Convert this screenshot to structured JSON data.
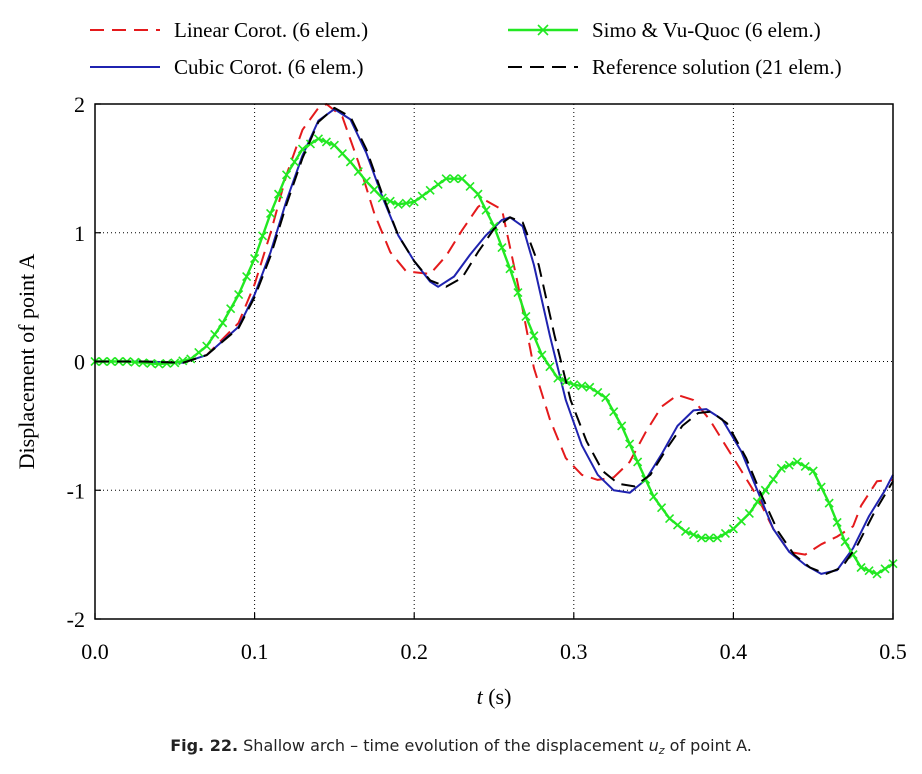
{
  "caption": {
    "label": "Fig. 22.",
    "text_before": "Shallow arch – time evolution of the displacement ",
    "var_main": "u",
    "var_sub": "z",
    "text_after": " of point A."
  },
  "chart_data": {
    "type": "line",
    "xlabel_italic": "t",
    "xlabel_unit": " (s)",
    "ylabel": "Displacement of point A",
    "xlim": [
      0.0,
      0.5
    ],
    "ylim": [
      -2,
      2
    ],
    "xticks": [
      0.0,
      0.1,
      0.2,
      0.3,
      0.4,
      0.5
    ],
    "xtick_labels": [
      "0.0",
      "0.1",
      "0.2",
      "0.3",
      "0.4",
      "0.5"
    ],
    "yticks": [
      -2,
      -1,
      0,
      1,
      2
    ],
    "ytick_labels": [
      "-2",
      "-1",
      "0",
      "1",
      "2"
    ],
    "grid": true,
    "legend_position": "top",
    "series": [
      {
        "name": "Linear Corot. (6 elem.)",
        "color": "#e41a1c",
        "style": "dashed",
        "marker": "none",
        "points": [
          [
            0,
            0
          ],
          [
            0.03,
            0
          ],
          [
            0.055,
            -0.01
          ],
          [
            0.07,
            0.05
          ],
          [
            0.09,
            0.3
          ],
          [
            0.1,
            0.6
          ],
          [
            0.11,
            1.0
          ],
          [
            0.12,
            1.45
          ],
          [
            0.13,
            1.8
          ],
          [
            0.14,
            1.97
          ],
          [
            0.145,
            2.0
          ],
          [
            0.155,
            1.9
          ],
          [
            0.165,
            1.55
          ],
          [
            0.175,
            1.15
          ],
          [
            0.185,
            0.85
          ],
          [
            0.195,
            0.7
          ],
          [
            0.21,
            0.68
          ],
          [
            0.22,
            0.82
          ],
          [
            0.23,
            1.02
          ],
          [
            0.24,
            1.2
          ],
          [
            0.245,
            1.25
          ],
          [
            0.255,
            1.18
          ],
          [
            0.265,
            0.6
          ],
          [
            0.275,
            -0.05
          ],
          [
            0.285,
            -0.45
          ],
          [
            0.295,
            -0.75
          ],
          [
            0.305,
            -0.88
          ],
          [
            0.315,
            -0.92
          ],
          [
            0.325,
            -0.9
          ],
          [
            0.335,
            -0.78
          ],
          [
            0.345,
            -0.55
          ],
          [
            0.355,
            -0.35
          ],
          [
            0.365,
            -0.26
          ],
          [
            0.375,
            -0.3
          ],
          [
            0.385,
            -0.45
          ],
          [
            0.395,
            -0.65
          ],
          [
            0.405,
            -0.85
          ],
          [
            0.415,
            -1.05
          ],
          [
            0.425,
            -1.3
          ],
          [
            0.435,
            -1.48
          ],
          [
            0.445,
            -1.5
          ],
          [
            0.455,
            -1.42
          ],
          [
            0.465,
            -1.36
          ],
          [
            0.475,
            -1.28
          ],
          [
            0.48,
            -1.12
          ],
          [
            0.49,
            -0.93
          ],
          [
            0.5,
            -0.92
          ]
        ]
      },
      {
        "name": "Cubic Corot. (6 elem.)",
        "color": "#1f23b0",
        "style": "solid",
        "marker": "none",
        "points": [
          [
            0,
            0
          ],
          [
            0.03,
            0
          ],
          [
            0.055,
            -0.01
          ],
          [
            0.07,
            0.05
          ],
          [
            0.09,
            0.27
          ],
          [
            0.1,
            0.52
          ],
          [
            0.11,
            0.85
          ],
          [
            0.12,
            1.25
          ],
          [
            0.13,
            1.6
          ],
          [
            0.14,
            1.87
          ],
          [
            0.15,
            1.96
          ],
          [
            0.16,
            1.88
          ],
          [
            0.17,
            1.62
          ],
          [
            0.18,
            1.28
          ],
          [
            0.19,
            0.98
          ],
          [
            0.2,
            0.78
          ],
          [
            0.21,
            0.62
          ],
          [
            0.215,
            0.58
          ],
          [
            0.225,
            0.66
          ],
          [
            0.235,
            0.83
          ],
          [
            0.245,
            0.98
          ],
          [
            0.255,
            1.1
          ],
          [
            0.26,
            1.12
          ],
          [
            0.268,
            1.05
          ],
          [
            0.275,
            0.75
          ],
          [
            0.285,
            0.2
          ],
          [
            0.295,
            -0.3
          ],
          [
            0.305,
            -0.65
          ],
          [
            0.315,
            -0.88
          ],
          [
            0.325,
            -1.0
          ],
          [
            0.335,
            -1.02
          ],
          [
            0.345,
            -0.92
          ],
          [
            0.355,
            -0.72
          ],
          [
            0.365,
            -0.5
          ],
          [
            0.375,
            -0.38
          ],
          [
            0.383,
            -0.37
          ],
          [
            0.393,
            -0.45
          ],
          [
            0.405,
            -0.7
          ],
          [
            0.415,
            -1.0
          ],
          [
            0.425,
            -1.3
          ],
          [
            0.435,
            -1.48
          ],
          [
            0.445,
            -1.58
          ],
          [
            0.455,
            -1.65
          ],
          [
            0.465,
            -1.62
          ],
          [
            0.475,
            -1.45
          ],
          [
            0.485,
            -1.2
          ],
          [
            0.495,
            -1.0
          ],
          [
            0.5,
            -0.88
          ]
        ]
      },
      {
        "name": "Simo & Vu-Quoc (6 elem.)",
        "color": "#22e822",
        "style": "solid",
        "marker": "x",
        "points": [
          [
            0,
            0
          ],
          [
            0.02,
            0
          ],
          [
            0.04,
            -0.02
          ],
          [
            0.05,
            -0.01
          ],
          [
            0.06,
            0.02
          ],
          [
            0.07,
            0.12
          ],
          [
            0.08,
            0.3
          ],
          [
            0.09,
            0.52
          ],
          [
            0.1,
            0.8
          ],
          [
            0.11,
            1.15
          ],
          [
            0.12,
            1.45
          ],
          [
            0.13,
            1.65
          ],
          [
            0.14,
            1.73
          ],
          [
            0.15,
            1.68
          ],
          [
            0.16,
            1.55
          ],
          [
            0.17,
            1.4
          ],
          [
            0.18,
            1.27
          ],
          [
            0.19,
            1.22
          ],
          [
            0.2,
            1.24
          ],
          [
            0.21,
            1.33
          ],
          [
            0.22,
            1.42
          ],
          [
            0.23,
            1.42
          ],
          [
            0.24,
            1.3
          ],
          [
            0.25,
            1.05
          ],
          [
            0.26,
            0.72
          ],
          [
            0.27,
            0.35
          ],
          [
            0.28,
            0.05
          ],
          [
            0.29,
            -0.13
          ],
          [
            0.3,
            -0.18
          ],
          [
            0.31,
            -0.2
          ],
          [
            0.32,
            -0.28
          ],
          [
            0.33,
            -0.5
          ],
          [
            0.34,
            -0.78
          ],
          [
            0.35,
            -1.05
          ],
          [
            0.36,
            -1.22
          ],
          [
            0.37,
            -1.32
          ],
          [
            0.38,
            -1.37
          ],
          [
            0.39,
            -1.37
          ],
          [
            0.4,
            -1.3
          ],
          [
            0.41,
            -1.18
          ],
          [
            0.42,
            -1.0
          ],
          [
            0.43,
            -0.83
          ],
          [
            0.44,
            -0.78
          ],
          [
            0.45,
            -0.85
          ],
          [
            0.46,
            -1.1
          ],
          [
            0.47,
            -1.4
          ],
          [
            0.48,
            -1.6
          ],
          [
            0.49,
            -1.65
          ],
          [
            0.5,
            -1.57
          ]
        ]
      },
      {
        "name": "Reference solution (21 elem.)",
        "color": "#000000",
        "style": "dashed",
        "marker": "none",
        "points": [
          [
            0,
            0
          ],
          [
            0.03,
            0
          ],
          [
            0.055,
            -0.01
          ],
          [
            0.07,
            0.05
          ],
          [
            0.09,
            0.26
          ],
          [
            0.1,
            0.5
          ],
          [
            0.11,
            0.82
          ],
          [
            0.12,
            1.22
          ],
          [
            0.13,
            1.58
          ],
          [
            0.14,
            1.86
          ],
          [
            0.15,
            1.97
          ],
          [
            0.16,
            1.9
          ],
          [
            0.17,
            1.65
          ],
          [
            0.18,
            1.3
          ],
          [
            0.19,
            0.98
          ],
          [
            0.2,
            0.78
          ],
          [
            0.21,
            0.63
          ],
          [
            0.22,
            0.58
          ],
          [
            0.23,
            0.65
          ],
          [
            0.24,
            0.85
          ],
          [
            0.25,
            1.03
          ],
          [
            0.26,
            1.12
          ],
          [
            0.268,
            1.08
          ],
          [
            0.278,
            0.75
          ],
          [
            0.288,
            0.2
          ],
          [
            0.298,
            -0.3
          ],
          [
            0.308,
            -0.62
          ],
          [
            0.318,
            -0.85
          ],
          [
            0.328,
            -0.95
          ],
          [
            0.338,
            -0.97
          ],
          [
            0.348,
            -0.88
          ],
          [
            0.358,
            -0.68
          ],
          [
            0.368,
            -0.5
          ],
          [
            0.378,
            -0.4
          ],
          [
            0.386,
            -0.39
          ],
          [
            0.396,
            -0.48
          ],
          [
            0.408,
            -0.75
          ],
          [
            0.418,
            -1.05
          ],
          [
            0.428,
            -1.32
          ],
          [
            0.438,
            -1.5
          ],
          [
            0.448,
            -1.6
          ],
          [
            0.458,
            -1.65
          ],
          [
            0.468,
            -1.6
          ],
          [
            0.478,
            -1.42
          ],
          [
            0.488,
            -1.18
          ],
          [
            0.5,
            -0.93
          ]
        ]
      }
    ]
  }
}
